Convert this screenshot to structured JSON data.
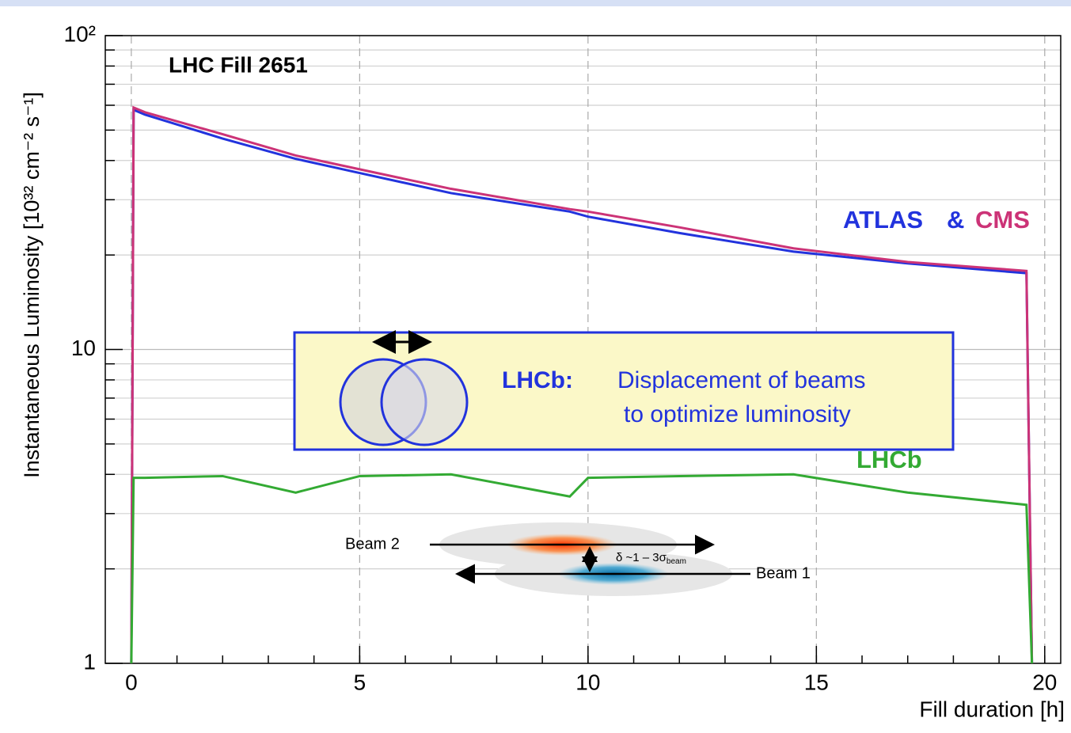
{
  "chart_data": {
    "type": "line",
    "title": "LHC Fill 2651",
    "x_label": "Fill duration [h]",
    "y_label": "Instantaneous Luminosity [10³² cm⁻² s⁻¹]",
    "x": [
      0,
      0.05,
      0.3,
      2,
      3.6,
      5,
      7,
      9.6,
      10,
      12,
      14.5,
      17,
      19.6,
      19.72
    ],
    "series": [
      {
        "name": "ATLAS",
        "color": "#2233dd",
        "values": [
          1,
          58,
          56,
          47,
          40.5,
          36.5,
          31.5,
          27.5,
          26.5,
          23.5,
          20.5,
          18.8,
          17.5,
          1
        ]
      },
      {
        "name": "CMS",
        "color": "#cc3377",
        "values": [
          1,
          59,
          57,
          48.5,
          41.5,
          37.5,
          32.5,
          28,
          27.5,
          24.5,
          21,
          19,
          17.8,
          1
        ]
      },
      {
        "name": "LHCb",
        "color": "#33aa33",
        "values": [
          1,
          3.9,
          3.9,
          3.95,
          3.5,
          3.95,
          4.0,
          3.4,
          3.9,
          3.95,
          4.0,
          3.5,
          3.2,
          1
        ]
      }
    ],
    "legend_joiner": "&",
    "xlim": [
      -0.57,
      20.35
    ],
    "xticks": [
      0,
      5,
      10,
      15,
      20
    ],
    "ylim": [
      1,
      100
    ],
    "yticks": [
      1,
      10,
      {
        "value": 100,
        "label": "10²"
      }
    ],
    "ylog": true,
    "grid": true,
    "inset": {
      "label": "LHCb:",
      "line1": "Displacement of beams",
      "line2": "to optimize luminosity"
    },
    "beam_diagram": {
      "beam2": "Beam 2",
      "beam1": "Beam 1",
      "offset": "δ ~1 – 3σ",
      "offset_sub": "beam"
    }
  }
}
